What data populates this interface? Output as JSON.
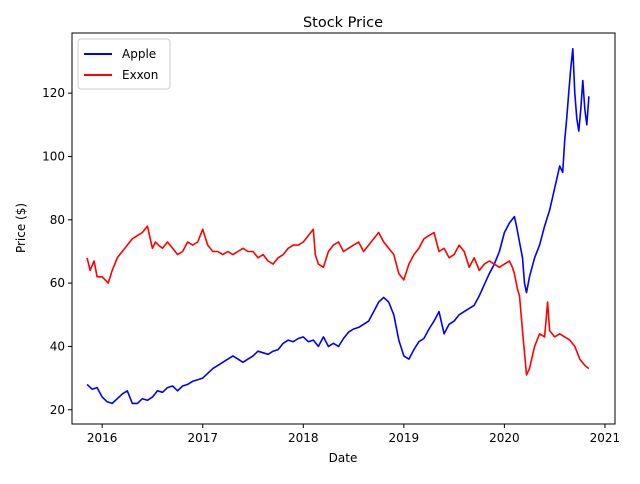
{
  "chart_data": {
    "type": "line",
    "title": "Stock Price",
    "xlabel": "Date",
    "ylabel": "Price ($)",
    "xlim": [
      2015.7,
      2021.1
    ],
    "ylim": [
      15.5,
      139
    ],
    "x_ticks": [
      2016,
      2017,
      2018,
      2019,
      2020,
      2021
    ],
    "x_tick_labels": [
      "2016",
      "2017",
      "2018",
      "2019",
      "2020",
      "2021"
    ],
    "y_ticks": [
      20,
      40,
      60,
      80,
      100,
      120
    ],
    "y_tick_labels": [
      "20",
      "40",
      "60",
      "80",
      "100",
      "120"
    ],
    "grid": false,
    "legend_position": "top-left",
    "series": [
      {
        "name": "Apple",
        "color": "#0000ff",
        "x": [
          2015.85,
          2015.9,
          2015.95,
          2016.0,
          2016.05,
          2016.1,
          2016.15,
          2016.2,
          2016.25,
          2016.3,
          2016.35,
          2016.4,
          2016.45,
          2016.5,
          2016.55,
          2016.6,
          2016.65,
          2016.7,
          2016.75,
          2016.8,
          2016.85,
          2016.9,
          2016.95,
          2017.0,
          2017.1,
          2017.15,
          2017.2,
          2017.25,
          2017.3,
          2017.35,
          2017.4,
          2017.45,
          2017.5,
          2017.55,
          2017.6,
          2017.65,
          2017.7,
          2017.75,
          2017.8,
          2017.85,
          2017.9,
          2017.95,
          2018.0,
          2018.05,
          2018.1,
          2018.15,
          2018.2,
          2018.25,
          2018.3,
          2018.35,
          2018.4,
          2018.45,
          2018.5,
          2018.55,
          2018.6,
          2018.65,
          2018.7,
          2018.75,
          2018.8,
          2018.85,
          2018.9,
          2018.95,
          2019.0,
          2019.05,
          2019.1,
          2019.15,
          2019.2,
          2019.25,
          2019.3,
          2019.35,
          2019.4,
          2019.45,
          2019.5,
          2019.55,
          2019.6,
          2019.65,
          2019.7,
          2019.75,
          2019.8,
          2019.85,
          2019.9,
          2019.95,
          2020.0,
          2020.05,
          2020.1,
          2020.12,
          2020.15,
          2020.18,
          2020.2,
          2020.22,
          2020.25,
          2020.3,
          2020.35,
          2020.4,
          2020.45,
          2020.5,
          2020.55,
          2020.58,
          2020.6,
          2020.62,
          2020.64,
          2020.66,
          2020.68,
          2020.7,
          2020.72,
          2020.74,
          2020.76,
          2020.78,
          2020.8,
          2020.82,
          2020.84
        ],
        "values": [
          28,
          26.5,
          27,
          24,
          22.5,
          22,
          23.5,
          25,
          26,
          22,
          22,
          23.5,
          23,
          24,
          26,
          25.5,
          27,
          27.5,
          26,
          27.5,
          28,
          29,
          29.5,
          30,
          33,
          34,
          35,
          36,
          37,
          36,
          35,
          36,
          37,
          38.5,
          38,
          37.5,
          38.5,
          39,
          41,
          42,
          41.5,
          42.5,
          43,
          41.5,
          42,
          40,
          43,
          40,
          41,
          40,
          42.5,
          44.5,
          45.5,
          46,
          47,
          48,
          51,
          54,
          55.5,
          54,
          50,
          42,
          37,
          36,
          39,
          41.5,
          42.5,
          45.5,
          48,
          51,
          44,
          47,
          48,
          50,
          51,
          52,
          53,
          56,
          59.5,
          63,
          66,
          70,
          76,
          79,
          81,
          78,
          73,
          68,
          60,
          57,
          62,
          68,
          72,
          78,
          83,
          90,
          97,
          95,
          105,
          112,
          120,
          128,
          134,
          120,
          112,
          108,
          115,
          124,
          115,
          110,
          119
        ]
      },
      {
        "name": "Exxon",
        "color": "#ff0000",
        "x": [
          2015.85,
          2015.88,
          2015.92,
          2015.95,
          2016.0,
          2016.03,
          2016.06,
          2016.1,
          2016.15,
          2016.2,
          2016.25,
          2016.3,
          2016.35,
          2016.4,
          2016.45,
          2016.5,
          2016.53,
          2016.56,
          2016.6,
          2016.65,
          2016.7,
          2016.75,
          2016.8,
          2016.85,
          2016.9,
          2016.95,
          2017.0,
          2017.05,
          2017.1,
          2017.15,
          2017.2,
          2017.25,
          2017.3,
          2017.35,
          2017.4,
          2017.45,
          2017.5,
          2017.55,
          2017.6,
          2017.65,
          2017.7,
          2017.75,
          2017.8,
          2017.85,
          2017.9,
          2017.95,
          2018.0,
          2018.05,
          2018.1,
          2018.12,
          2018.15,
          2018.2,
          2018.25,
          2018.3,
          2018.35,
          2018.4,
          2018.45,
          2018.5,
          2018.55,
          2018.6,
          2018.65,
          2018.7,
          2018.75,
          2018.8,
          2018.85,
          2018.9,
          2018.95,
          2019.0,
          2019.05,
          2019.1,
          2019.15,
          2019.2,
          2019.25,
          2019.3,
          2019.35,
          2019.4,
          2019.45,
          2019.5,
          2019.55,
          2019.6,
          2019.65,
          2019.7,
          2019.75,
          2019.8,
          2019.85,
          2019.9,
          2019.95,
          2020.0,
          2020.05,
          2020.08,
          2020.1,
          2020.13,
          2020.15,
          2020.18,
          2020.2,
          2020.22,
          2020.25,
          2020.3,
          2020.35,
          2020.4,
          2020.43,
          2020.45,
          2020.5,
          2020.55,
          2020.6,
          2020.65,
          2020.7,
          2020.75,
          2020.8,
          2020.84
        ],
        "values": [
          68,
          64,
          67,
          62,
          62,
          61,
          60,
          64,
          68,
          70,
          72,
          74,
          75,
          76,
          78,
          71,
          73,
          72,
          71,
          73,
          71,
          69,
          70,
          73,
          72,
          73,
          77,
          72,
          70,
          70,
          69,
          70,
          69,
          70,
          71,
          70,
          70,
          68,
          69,
          67,
          66,
          68,
          69,
          71,
          72,
          72,
          73,
          75,
          77,
          69,
          66,
          65,
          70,
          72,
          73,
          70,
          71,
          72,
          73,
          70,
          72,
          74,
          76,
          73,
          71,
          69,
          63,
          61,
          66,
          69,
          71,
          74,
          75,
          76,
          70,
          71,
          68,
          69,
          72,
          70,
          65,
          68,
          64,
          66,
          67,
          66,
          65,
          66,
          67,
          65,
          63,
          58,
          56,
          45,
          38,
          31,
          33,
          40,
          44,
          43,
          54,
          45,
          43,
          44,
          43,
          42,
          40,
          36,
          34,
          33
        ]
      }
    ]
  }
}
